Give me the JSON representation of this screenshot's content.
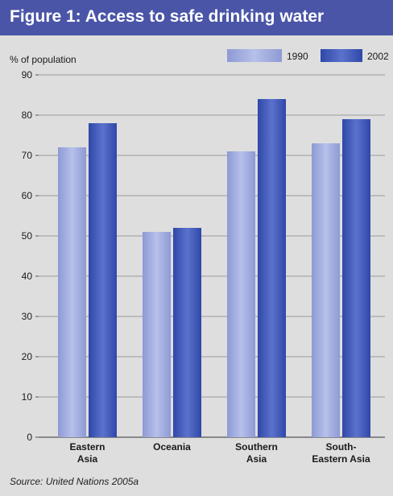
{
  "figure": {
    "title": "Figure 1: Access to safe drinking water",
    "source": "Source: United Nations 2005a",
    "title_bar_color": "#4a55a8"
  },
  "chart_data": {
    "type": "bar",
    "title": "Figure 1: Access to safe drinking water",
    "ylabel": "% of population",
    "xlabel": "",
    "categories": [
      [
        "Eastern",
        "Asia"
      ],
      [
        "Oceania"
      ],
      [
        "Southern",
        "Asia"
      ],
      [
        "South-",
        "Eastern Asia"
      ]
    ],
    "series": [
      {
        "name": "1990",
        "values": [
          72,
          51,
          71,
          73
        ],
        "color": "#9aa6dc"
      },
      {
        "name": "2002",
        "values": [
          78,
          52,
          84,
          79
        ],
        "color": "#3f56b4"
      }
    ],
    "ylim": [
      0,
      90
    ],
    "yticks": [
      0,
      10,
      20,
      30,
      40,
      50,
      60,
      70,
      80,
      90
    ],
    "grid": true,
    "legend": "top-right"
  }
}
